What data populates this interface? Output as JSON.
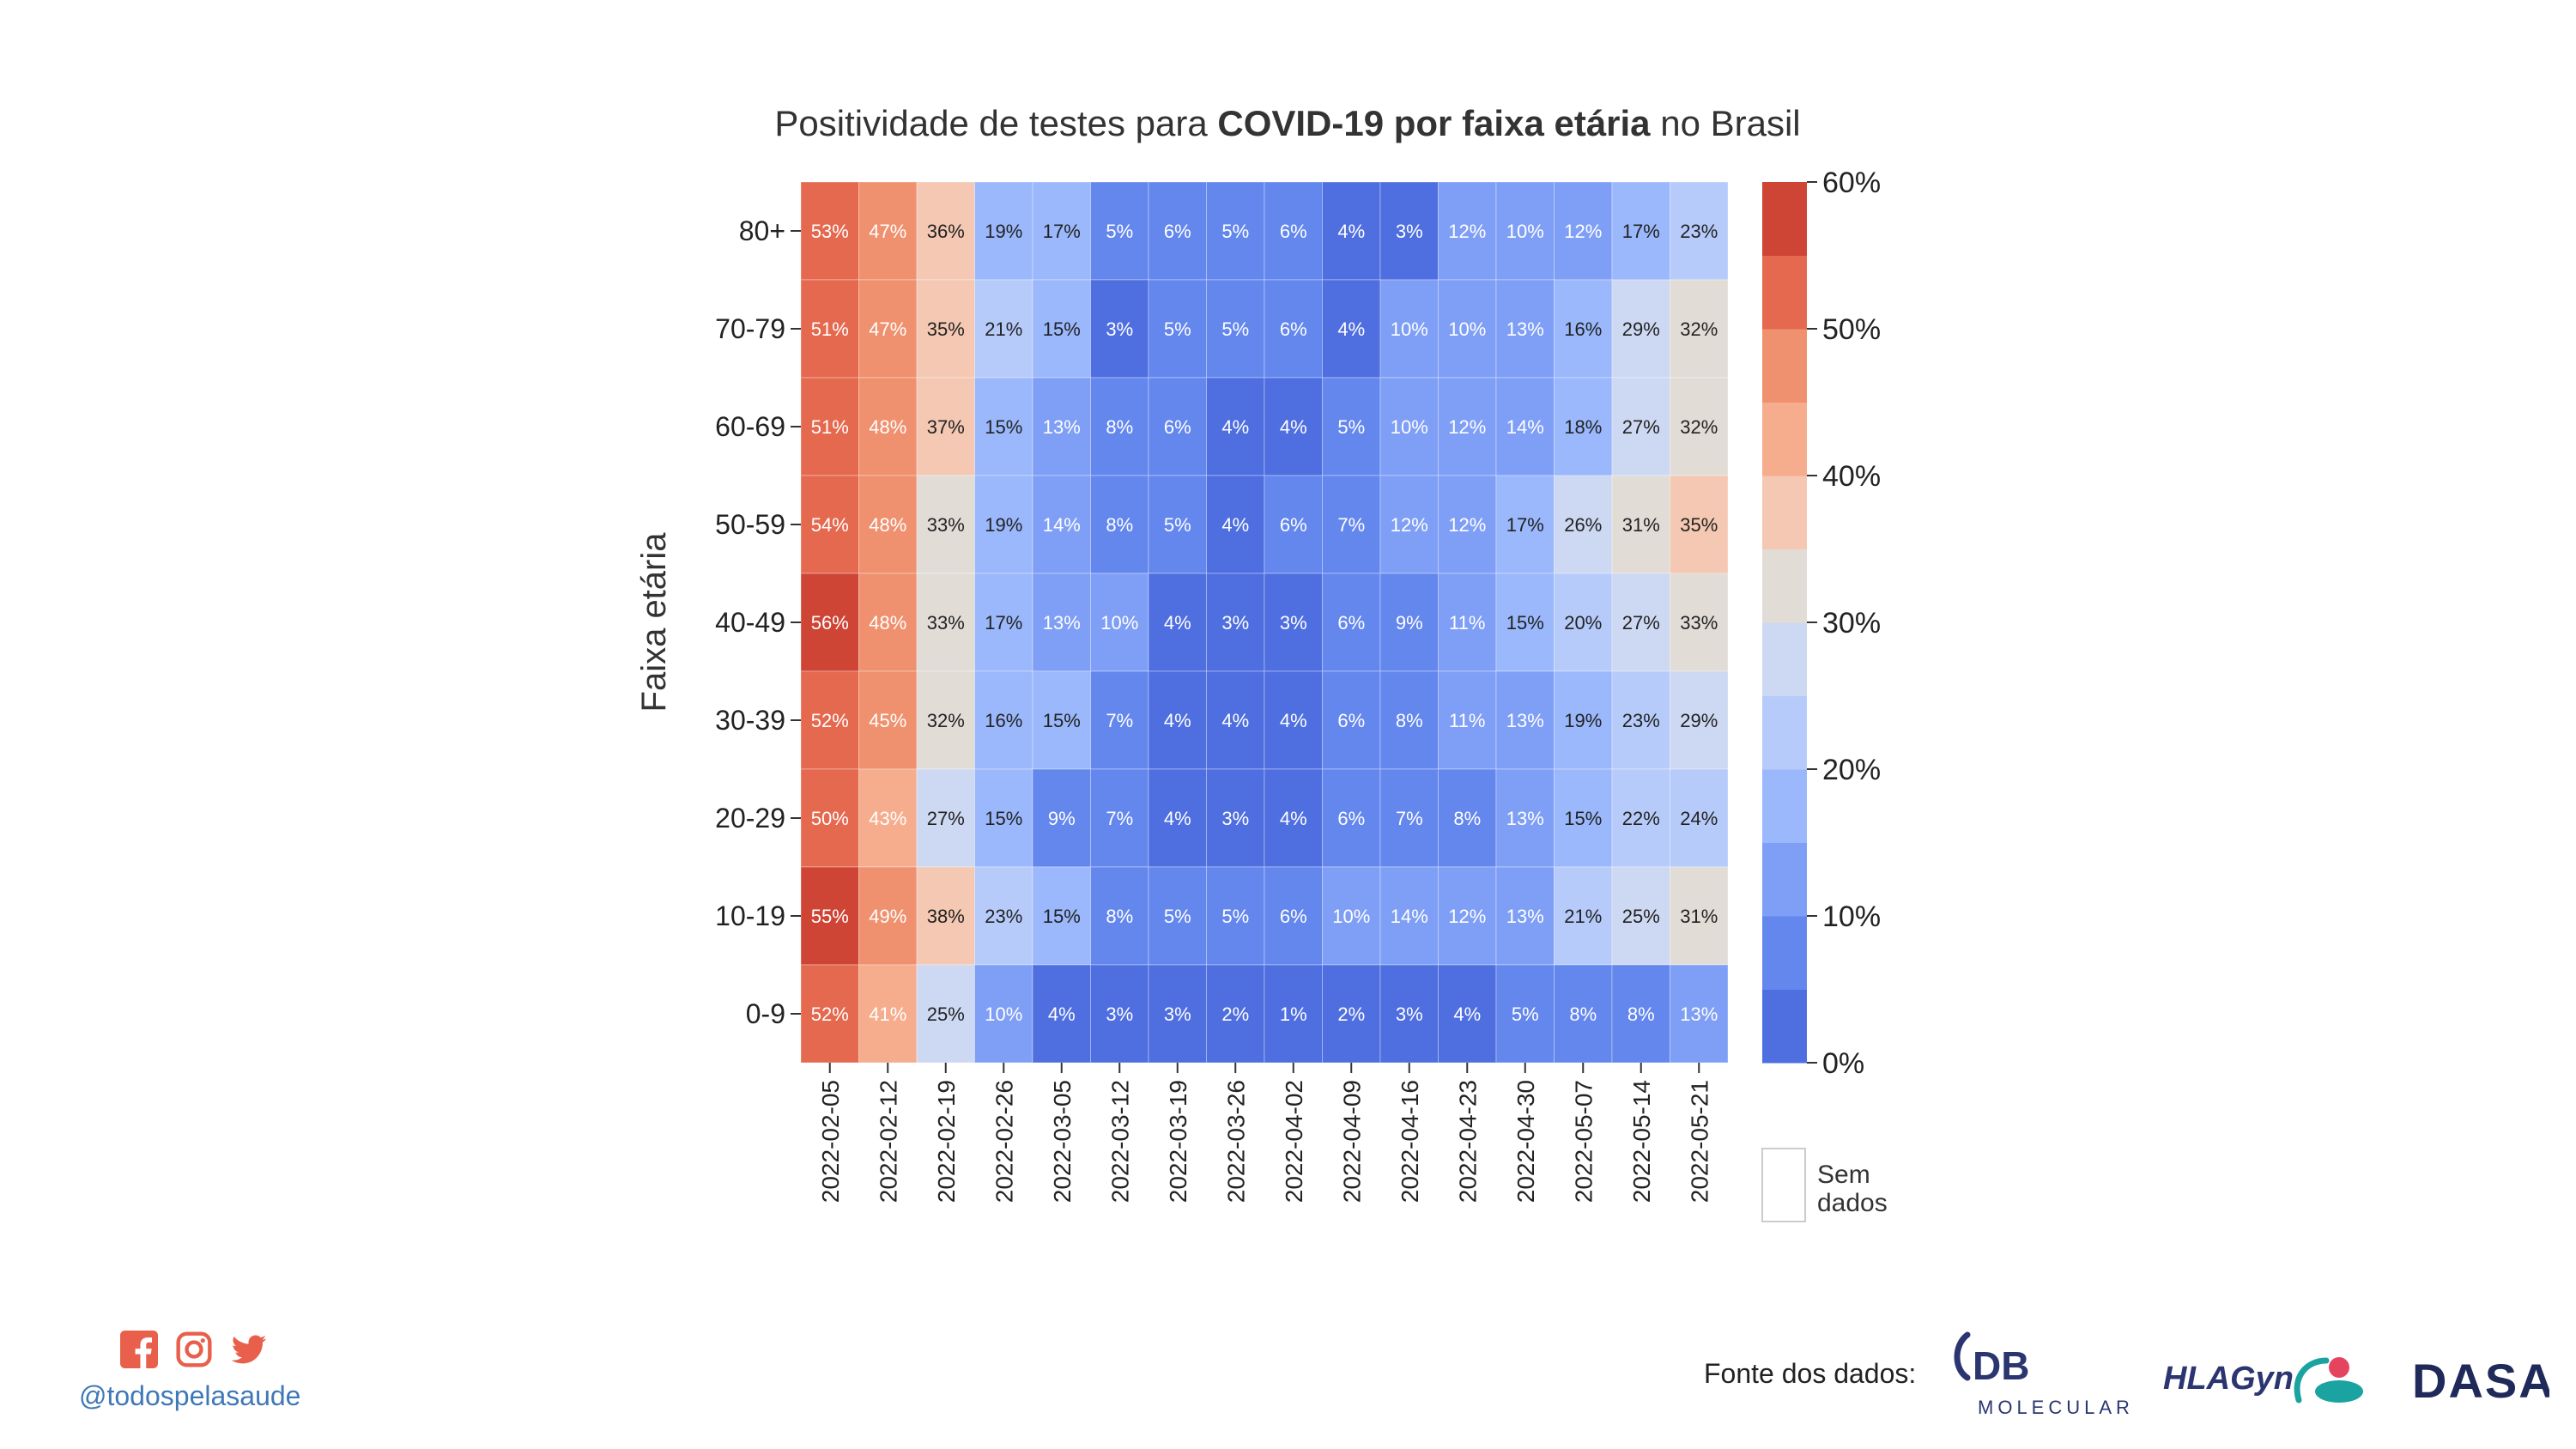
{
  "title": {
    "parts": [
      {
        "text": "Positividade de testes para ",
        "bold": false
      },
      {
        "text": "COVID-19 por faixa etária",
        "bold": true
      },
      {
        "text": " no Brasil",
        "bold": false
      }
    ]
  },
  "chart_data": {
    "type": "heatmap",
    "title": "Positividade de testes para COVID-19 por faixa etária no Brasil",
    "ylabel": "Faixa etária",
    "xlabel": "",
    "x": [
      "2022-02-05",
      "2022-02-12",
      "2022-02-19",
      "2022-02-26",
      "2022-03-05",
      "2022-03-12",
      "2022-03-19",
      "2022-03-26",
      "2022-04-02",
      "2022-04-09",
      "2022-04-16",
      "2022-04-23",
      "2022-04-30",
      "2022-05-07",
      "2022-05-14",
      "2022-05-21"
    ],
    "y": [
      "80+",
      "70-79",
      "60-69",
      "50-59",
      "40-49",
      "30-39",
      "20-29",
      "10-19",
      "0-9"
    ],
    "values": [
      [
        53,
        47,
        36,
        19,
        17,
        5,
        6,
        5,
        6,
        4,
        3,
        12,
        10,
        12,
        17,
        23
      ],
      [
        51,
        47,
        35,
        21,
        15,
        3,
        5,
        5,
        6,
        4,
        10,
        10,
        13,
        16,
        29,
        32
      ],
      [
        51,
        48,
        37,
        15,
        13,
        8,
        6,
        4,
        4,
        5,
        10,
        12,
        14,
        18,
        27,
        32
      ],
      [
        54,
        48,
        33,
        19,
        14,
        8,
        5,
        4,
        6,
        7,
        12,
        12,
        17,
        26,
        31,
        35
      ],
      [
        56,
        48,
        33,
        17,
        13,
        10,
        4,
        3,
        3,
        6,
        9,
        11,
        15,
        20,
        27,
        33
      ],
      [
        52,
        45,
        32,
        16,
        15,
        7,
        4,
        4,
        4,
        6,
        8,
        11,
        13,
        19,
        23,
        29
      ],
      [
        50,
        43,
        27,
        15,
        9,
        7,
        4,
        3,
        4,
        6,
        7,
        8,
        13,
        15,
        22,
        24
      ],
      [
        55,
        49,
        38,
        23,
        15,
        8,
        5,
        5,
        6,
        10,
        14,
        12,
        13,
        21,
        25,
        31
      ],
      [
        52,
        41,
        25,
        10,
        4,
        3,
        3,
        2,
        1,
        2,
        3,
        4,
        5,
        8,
        8,
        13
      ]
    ],
    "value_suffix": "%",
    "colorbar": {
      "min": 0,
      "max": 60,
      "step": 5,
      "ticks": [
        0,
        10,
        20,
        30,
        40,
        50,
        60
      ],
      "tick_labels": [
        "0%",
        "10%",
        "20%",
        "30%",
        "40%",
        "50%",
        "60%"
      ],
      "colors": [
        "#4f6fe0",
        "#6487ee",
        "#7f9ff6",
        "#9ab8fb",
        "#b6cbfa",
        "#cdd8f2",
        "#e2dcd7",
        "#f4c8b2",
        "#f6ad8e",
        "#ef916f",
        "#e5694f",
        "#cf4535"
      ]
    },
    "missing_label": "Sem\ndados",
    "grid": false
  },
  "footer": {
    "handle": "@todospelasaude",
    "source_label": "Fonte dos dados:",
    "social_icons": [
      "facebook-icon",
      "instagram-icon",
      "twitter-icon"
    ],
    "social_color": "#e8604c",
    "logos": [
      {
        "name": "db-molecular-logo",
        "text": "DB",
        "subtext": "MOLECULAR",
        "color": "#2b3670"
      },
      {
        "name": "hlagyn-logo",
        "text": "HLAGyn.",
        "color": "#2b3670",
        "accent": "#1aa3a0",
        "accent2": "#e5445e"
      },
      {
        "name": "dasa-logo",
        "text": "DASA",
        "color": "#1f2a5a"
      }
    ]
  }
}
